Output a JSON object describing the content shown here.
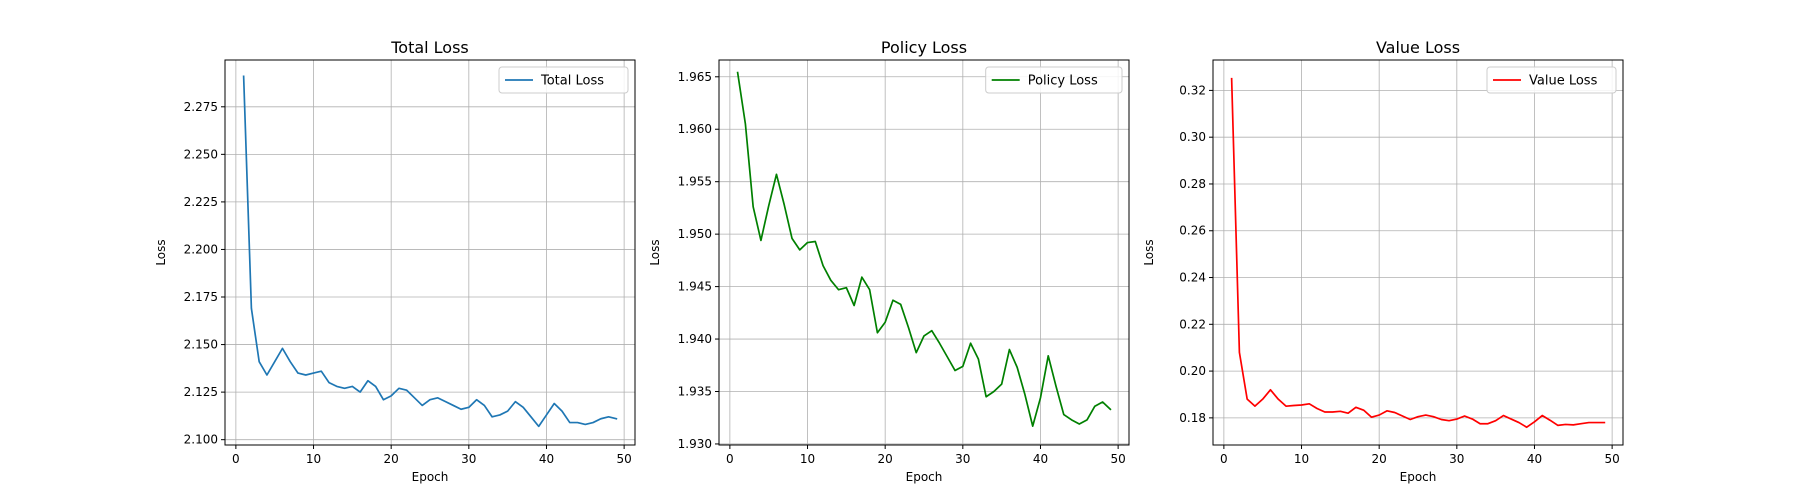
{
  "chart_data": [
    {
      "type": "line",
      "title": "Total Loss",
      "xlabel": "Epoch",
      "ylabel": "Loss",
      "xlim": [
        -1.4,
        51.4
      ],
      "ylim": [
        2.0972,
        2.2996
      ],
      "xticks": [
        0,
        10,
        20,
        30,
        40,
        50
      ],
      "yticks": [
        2.1,
        2.125,
        2.15,
        2.175,
        2.2,
        2.225,
        2.25,
        2.275
      ],
      "ytick_decimals": 3,
      "grid": true,
      "legend": "top-right",
      "series": [
        {
          "name": "Total Loss",
          "color": "#1f77b4",
          "x": [
            1,
            2,
            3,
            4,
            5,
            6,
            7,
            8,
            9,
            10,
            11,
            12,
            13,
            14,
            15,
            16,
            17,
            18,
            19,
            20,
            21,
            22,
            23,
            24,
            25,
            26,
            27,
            28,
            29,
            30,
            31,
            32,
            33,
            34,
            35,
            36,
            37,
            38,
            39,
            40,
            41,
            42,
            43,
            44,
            45,
            46,
            47,
            48,
            49
          ],
          "y": [
            2.291,
            2.169,
            2.141,
            2.134,
            2.141,
            2.148,
            2.141,
            2.135,
            2.134,
            2.135,
            2.136,
            2.13,
            2.128,
            2.127,
            2.128,
            2.125,
            2.131,
            2.128,
            2.121,
            2.123,
            2.127,
            2.126,
            2.122,
            2.118,
            2.121,
            2.122,
            2.12,
            2.118,
            2.116,
            2.117,
            2.121,
            2.118,
            2.112,
            2.113,
            2.115,
            2.12,
            2.117,
            2.112,
            2.107,
            2.113,
            2.119,
            2.115,
            2.109,
            2.109,
            2.108,
            2.109,
            2.111,
            2.112,
            2.111
          ]
        }
      ]
    },
    {
      "type": "line",
      "title": "Policy Loss",
      "xlabel": "Epoch",
      "ylabel": "Loss",
      "xlim": [
        -1.4,
        51.4
      ],
      "ylim": [
        1.9299,
        1.9666
      ],
      "xticks": [
        0,
        10,
        20,
        30,
        40,
        50
      ],
      "yticks": [
        1.93,
        1.935,
        1.94,
        1.945,
        1.95,
        1.955,
        1.96,
        1.965
      ],
      "ytick_decimals": 3,
      "grid": true,
      "legend": "top-right",
      "series": [
        {
          "name": "Policy Loss",
          "color": "#008000",
          "x": [
            1,
            2,
            3,
            4,
            5,
            6,
            7,
            8,
            9,
            10,
            11,
            12,
            13,
            14,
            15,
            16,
            17,
            18,
            19,
            20,
            21,
            22,
            23,
            24,
            25,
            26,
            27,
            28,
            29,
            30,
            31,
            32,
            33,
            34,
            35,
            36,
            37,
            38,
            39,
            40,
            41,
            42,
            43,
            44,
            45,
            46,
            47,
            48,
            49
          ],
          "y": [
            1.9654,
            1.9605,
            1.9526,
            1.9494,
            1.9527,
            1.9557,
            1.9528,
            1.9496,
            1.9485,
            1.9492,
            1.9493,
            1.947,
            1.9456,
            1.9447,
            1.9449,
            1.9432,
            1.9459,
            1.9447,
            1.9406,
            1.9416,
            1.9437,
            1.9433,
            1.9411,
            1.9387,
            1.9403,
            1.9408,
            1.9396,
            1.9383,
            1.937,
            1.9374,
            1.9396,
            1.9381,
            1.9345,
            1.935,
            1.9357,
            1.939,
            1.9373,
            1.9347,
            1.9317,
            1.9344,
            1.9384,
            1.9355,
            1.9328,
            1.9323,
            1.9319,
            1.9323,
            1.9336,
            1.934,
            1.9333
          ]
        }
      ]
    },
    {
      "type": "line",
      "title": "Value Loss",
      "xlabel": "Epoch",
      "ylabel": "Loss",
      "xlim": [
        -1.4,
        51.4
      ],
      "ylim": [
        0.1684,
        0.333
      ],
      "xticks": [
        0,
        10,
        20,
        30,
        40,
        50
      ],
      "yticks": [
        0.18,
        0.2,
        0.22,
        0.24,
        0.26,
        0.28,
        0.3,
        0.32
      ],
      "ytick_decimals": 2,
      "grid": true,
      "legend": "top-right",
      "series": [
        {
          "name": "Value Loss",
          "color": "#ff0000",
          "x": [
            1,
            2,
            3,
            4,
            5,
            6,
            7,
            8,
            9,
            10,
            11,
            12,
            13,
            14,
            15,
            16,
            17,
            18,
            19,
            20,
            21,
            22,
            23,
            24,
            25,
            26,
            27,
            28,
            29,
            30,
            31,
            32,
            33,
            34,
            35,
            36,
            37,
            38,
            39,
            40,
            41,
            42,
            43,
            44,
            45,
            46,
            47,
            48,
            49
          ],
          "y": [
            0.325,
            0.208,
            0.188,
            0.185,
            0.188,
            0.192,
            0.188,
            0.185,
            0.1853,
            0.1855,
            0.186,
            0.184,
            0.1825,
            0.1825,
            0.1828,
            0.182,
            0.1845,
            0.1833,
            0.1803,
            0.1812,
            0.183,
            0.1823,
            0.1808,
            0.1793,
            0.1805,
            0.1812,
            0.1805,
            0.1793,
            0.1788,
            0.1795,
            0.1808,
            0.1795,
            0.1775,
            0.1775,
            0.1788,
            0.181,
            0.1795,
            0.178,
            0.176,
            0.1783,
            0.181,
            0.179,
            0.1768,
            0.1772,
            0.177,
            0.1775,
            0.178,
            0.178,
            0.178
          ]
        }
      ]
    }
  ]
}
